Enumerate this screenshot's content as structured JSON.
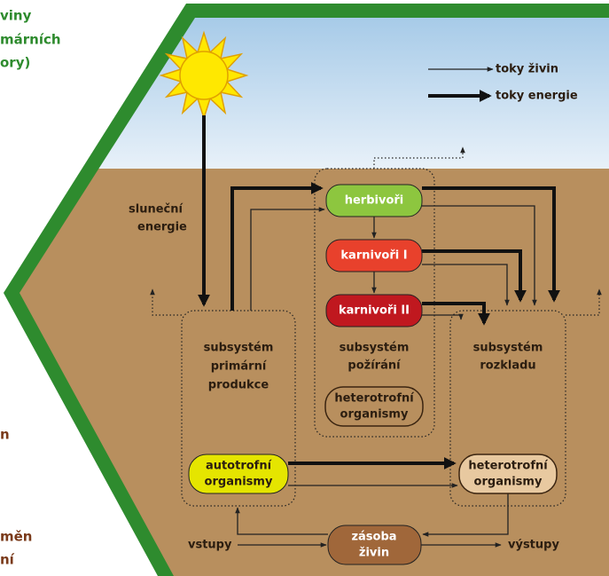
{
  "left_text": {
    "top": [
      "viny",
      "márních",
      "ory)"
    ],
    "middle": "n",
    "bottom": [
      "měn",
      "ní"
    ]
  },
  "legend": {
    "nutrient_flows": "toky živin",
    "energy_flows": "toky energie"
  },
  "solar_energy": [
    "sluneční",
    "energie"
  ],
  "subsystems": {
    "primary": [
      "subsystém",
      "primární",
      "produkce"
    ],
    "consumption": [
      "subsystém",
      "požírání"
    ],
    "decomposition": [
      "subsystém",
      "rozkladu"
    ]
  },
  "nodes": {
    "herbivores": "herbivoři",
    "carnivores_1": "karnivoři I",
    "carnivores_2": "karnivoři II",
    "heterotrophs_mid": [
      "heterotrofní",
      "organismy"
    ],
    "autotrophs": [
      "autotrofní",
      "organismy"
    ],
    "heterotrophs_right": [
      "heterotrofní",
      "organismy"
    ],
    "nutrient_pool": [
      "zásoba",
      "živin"
    ]
  },
  "io": {
    "inputs": "vstupy",
    "outputs": "výstupy"
  }
}
